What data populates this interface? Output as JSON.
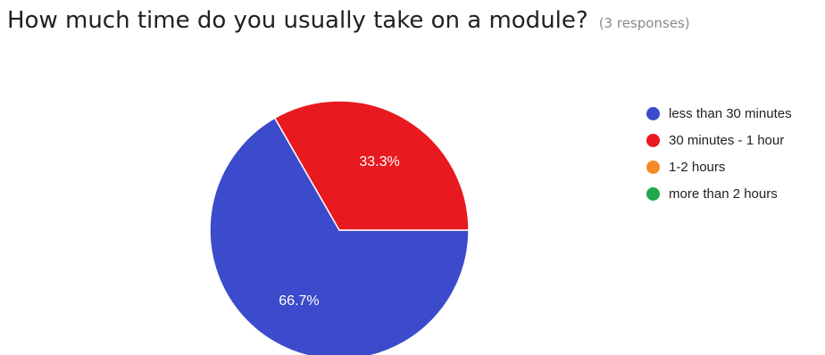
{
  "header": {
    "title": "How much time do you usually take on a module?",
    "responses": "(3 responses)"
  },
  "chart_data": {
    "type": "pie",
    "title": "How much time do you usually take on a module?",
    "categories": [
      "less than 30 minutes",
      "30 minutes - 1 hour",
      "1-2 hours",
      "more than 2 hours"
    ],
    "values": [
      66.7,
      33.3,
      0,
      0
    ],
    "data_labels": [
      "66.7%",
      "33.3%",
      "",
      ""
    ],
    "colors": [
      "#3c4bcb",
      "#e8191f",
      "#f58a2a",
      "#22a84a"
    ],
    "legend_position": "right"
  }
}
